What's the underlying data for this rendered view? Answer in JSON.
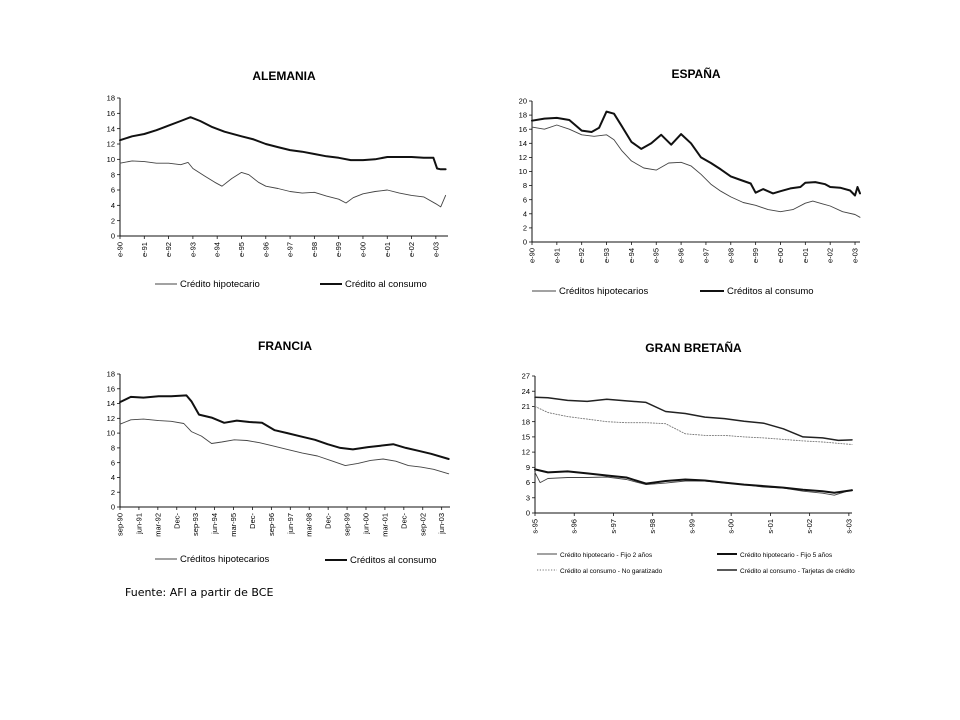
{
  "source_note": "Fuente: AFI a partir de BCE",
  "chart_data": [
    {
      "type": "line",
      "title": "ALEMANIA",
      "ylim": [
        0,
        18
      ],
      "yticks": [
        0,
        2,
        4,
        6,
        8,
        10,
        12,
        14,
        16,
        18
      ],
      "xlim": [
        1990,
        2003.5
      ],
      "xticks": [
        {
          "x": 1990,
          "label": "e-90"
        },
        {
          "x": 1991,
          "label": "e-91"
        },
        {
          "x": 1992,
          "label": "e-92"
        },
        {
          "x": 1993,
          "label": "e-93"
        },
        {
          "x": 1994,
          "label": "e-94"
        },
        {
          "x": 1995,
          "label": "e-95"
        },
        {
          "x": 1996,
          "label": "e-96"
        },
        {
          "x": 1997,
          "label": "e-97"
        },
        {
          "x": 1998,
          "label": "e-98"
        },
        {
          "x": 1999,
          "label": "e-99"
        },
        {
          "x": 2000,
          "label": "e-00"
        },
        {
          "x": 2001,
          "label": "e-01"
        },
        {
          "x": 2002,
          "label": "e-02"
        },
        {
          "x": 2003,
          "label": "e-03"
        }
      ],
      "legend": [
        {
          "label": "Crédito hipotecario",
          "style": "thin"
        },
        {
          "label": "Crédito al consumo",
          "style": "thick"
        }
      ],
      "series": [
        {
          "name": "Crédito hipotecario",
          "style": "thin",
          "x": [
            1990,
            1990.5,
            1991,
            1991.5,
            1992,
            1992.5,
            1992.8,
            1993,
            1993.5,
            1993.9,
            1994.2,
            1994.6,
            1995,
            1995.3,
            1995.7,
            1996,
            1996.5,
            1997,
            1997.5,
            1998,
            1998.5,
            1999,
            1999.3,
            1999.6,
            2000,
            2000.5,
            2001,
            2001.5,
            2002,
            2002.5,
            2003,
            2003.2,
            2003.4
          ],
          "y": [
            9.5,
            9.8,
            9.7,
            9.5,
            9.5,
            9.3,
            9.6,
            8.8,
            7.8,
            7.0,
            6.5,
            7.5,
            8.3,
            8.0,
            7.0,
            6.5,
            6.2,
            5.8,
            5.6,
            5.7,
            5.2,
            4.8,
            4.3,
            5.0,
            5.5,
            5.8,
            6.0,
            5.6,
            5.3,
            5.1,
            4.2,
            3.8,
            5.3
          ]
        },
        {
          "name": "Crédito al consumo",
          "style": "thick",
          "x": [
            1990,
            1990.5,
            1991,
            1991.5,
            1992,
            1992.5,
            1992.9,
            1993.3,
            1993.8,
            1994.3,
            1995,
            1995.5,
            1996,
            1996.5,
            1997,
            1997.5,
            1998,
            1998.5,
            1999,
            1999.5,
            2000,
            2000.5,
            2001,
            2001.5,
            2002,
            2002.5,
            2002.9,
            2003.05,
            2003.2,
            2003.4
          ],
          "y": [
            12.5,
            13.0,
            13.3,
            13.8,
            14.4,
            15.0,
            15.5,
            15.0,
            14.2,
            13.6,
            13.0,
            12.6,
            12.0,
            11.6,
            11.2,
            11.0,
            10.7,
            10.4,
            10.2,
            9.9,
            9.9,
            10.0,
            10.3,
            10.3,
            10.3,
            10.2,
            10.2,
            8.8,
            8.7,
            8.7
          ]
        }
      ]
    },
    {
      "type": "line",
      "title": "ESPAÑA",
      "ylim": [
        0,
        20
      ],
      "yticks": [
        0,
        2,
        4,
        6,
        8,
        10,
        12,
        14,
        16,
        18,
        20
      ],
      "xlim": [
        1990,
        2003.2
      ],
      "xticks": [
        {
          "x": 1990,
          "label": "e-90"
        },
        {
          "x": 1991,
          "label": "e-91"
        },
        {
          "x": 1992,
          "label": "e-92"
        },
        {
          "x": 1993,
          "label": "e-93"
        },
        {
          "x": 1994,
          "label": "e-94"
        },
        {
          "x": 1995,
          "label": "e-95"
        },
        {
          "x": 1996,
          "label": "e-96"
        },
        {
          "x": 1997,
          "label": "e-97"
        },
        {
          "x": 1998,
          "label": "e-98"
        },
        {
          "x": 1999,
          "label": "e-99"
        },
        {
          "x": 2000,
          "label": "e-00"
        },
        {
          "x": 2001,
          "label": "e-01"
        },
        {
          "x": 2002,
          "label": "e-02"
        },
        {
          "x": 2003,
          "label": "e-03"
        }
      ],
      "legend": [
        {
          "label": "Créditos hipotecarios",
          "style": "thin"
        },
        {
          "label": "Créditos al consumo",
          "style": "thick"
        }
      ],
      "series": [
        {
          "name": "Créditos hipotecarios",
          "style": "thin",
          "x": [
            1990,
            1990.5,
            1991,
            1991.5,
            1992,
            1992.5,
            1993,
            1993.3,
            1993.6,
            1994,
            1994.5,
            1995,
            1995.5,
            1996,
            1996.4,
            1996.8,
            1997.2,
            1997.6,
            1998,
            1998.5,
            1999,
            1999.5,
            2000,
            2000.5,
            2001,
            2001.3,
            2001.7,
            2002,
            2002.5,
            2003,
            2003.2
          ],
          "y": [
            16.3,
            16.0,
            16.6,
            16.0,
            15.2,
            15.0,
            15.2,
            14.5,
            13.0,
            11.5,
            10.5,
            10.2,
            11.2,
            11.3,
            10.8,
            9.6,
            8.2,
            7.2,
            6.4,
            5.6,
            5.2,
            4.6,
            4.3,
            4.6,
            5.5,
            5.8,
            5.4,
            5.1,
            4.3,
            3.9,
            3.5
          ]
        },
        {
          "name": "Créditos al consumo",
          "style": "thick",
          "x": [
            1990,
            1990.5,
            1991,
            1991.5,
            1992,
            1992.4,
            1992.7,
            1993,
            1993.3,
            1993.6,
            1994,
            1994.4,
            1994.8,
            1995.2,
            1995.6,
            1996,
            1996.4,
            1996.8,
            1997.2,
            1997.6,
            1998,
            1998.4,
            1998.8,
            1999,
            1999.3,
            1999.7,
            2000,
            2000.4,
            2000.8,
            2001,
            2001.4,
            2001.8,
            2002,
            2002.4,
            2002.8,
            2003,
            2003.1,
            2003.2
          ],
          "y": [
            17.2,
            17.5,
            17.6,
            17.3,
            15.8,
            15.6,
            16.2,
            18.5,
            18.2,
            16.5,
            14.2,
            13.2,
            14.0,
            15.2,
            13.8,
            15.3,
            14.0,
            12.0,
            11.2,
            10.3,
            9.3,
            8.8,
            8.3,
            7.0,
            7.5,
            6.9,
            7.2,
            7.6,
            7.8,
            8.4,
            8.5,
            8.2,
            7.8,
            7.7,
            7.3,
            6.6,
            7.8,
            6.9
          ]
        }
      ]
    },
    {
      "type": "line",
      "title": "FRANCIA",
      "ylim": [
        0,
        18
      ],
      "yticks": [
        0,
        2,
        4,
        6,
        8,
        10,
        12,
        14,
        16,
        18
      ],
      "xlim": [
        1990.67,
        2003.75
      ],
      "xticks": [
        {
          "x": 1990.67,
          "label": "sep-90"
        },
        {
          "x": 1991.42,
          "label": "jun-91"
        },
        {
          "x": 1992.17,
          "label": "mar-92"
        },
        {
          "x": 1992.92,
          "label": "Dec-"
        },
        {
          "x": 1993.67,
          "label": "sep-93"
        },
        {
          "x": 1994.42,
          "label": "jun-94"
        },
        {
          "x": 1995.17,
          "label": "mar-95"
        },
        {
          "x": 1995.92,
          "label": "Dec-"
        },
        {
          "x": 1996.67,
          "label": "sep-96"
        },
        {
          "x": 1997.42,
          "label": "jun-97"
        },
        {
          "x": 1998.17,
          "label": "mar-98"
        },
        {
          "x": 1998.92,
          "label": "Dec-"
        },
        {
          "x": 1999.67,
          "label": "sep-99"
        },
        {
          "x": 2000.42,
          "label": "jun-00"
        },
        {
          "x": 2001.17,
          "label": "mar-01"
        },
        {
          "x": 2001.92,
          "label": "Dec-"
        },
        {
          "x": 2002.67,
          "label": "sep-02"
        },
        {
          "x": 2003.42,
          "label": "jun-03"
        }
      ],
      "legend": [
        {
          "label": "Créditos hipotecarios",
          "style": "thin"
        },
        {
          "label": "Créditos al consumo",
          "style": "thick"
        }
      ],
      "series": [
        {
          "name": "Créditos hipotecarios",
          "style": "thin",
          "x": [
            1990.67,
            1991.1,
            1991.6,
            1992.2,
            1992.7,
            1993.2,
            1993.5,
            1993.9,
            1994.3,
            1994.7,
            1995.2,
            1995.7,
            1996.2,
            1996.7,
            1997.3,
            1997.9,
            1998.5,
            1999.1,
            1999.6,
            2000.1,
            2000.6,
            2001.1,
            2001.6,
            2002.1,
            2002.6,
            2003.1,
            2003.7
          ],
          "y": [
            11.2,
            11.8,
            11.9,
            11.7,
            11.6,
            11.3,
            10.2,
            9.6,
            8.6,
            8.8,
            9.1,
            9.0,
            8.7,
            8.3,
            7.8,
            7.3,
            6.9,
            6.2,
            5.6,
            5.9,
            6.3,
            6.5,
            6.2,
            5.6,
            5.4,
            5.1,
            4.5
          ]
        },
        {
          "name": "Créditos al consumo",
          "style": "thick",
          "x": [
            1990.67,
            1991.1,
            1991.6,
            1992.2,
            1992.7,
            1993.3,
            1993.5,
            1993.8,
            1994.3,
            1994.8,
            1995.3,
            1995.8,
            1996.3,
            1996.8,
            1997.3,
            1997.9,
            1998.4,
            1998.9,
            1999.4,
            1999.9,
            2000.5,
            2001.0,
            2001.5,
            2002.0,
            2002.5,
            2003.0,
            2003.7
          ],
          "y": [
            14.2,
            14.9,
            14.8,
            15.0,
            15.0,
            15.1,
            14.3,
            12.5,
            12.1,
            11.4,
            11.7,
            11.5,
            11.4,
            10.4,
            10.0,
            9.5,
            9.1,
            8.5,
            8.0,
            7.8,
            8.1,
            8.3,
            8.5,
            8.0,
            7.6,
            7.2,
            6.5
          ]
        }
      ]
    },
    {
      "type": "line",
      "title": "GRAN BRETAÑA",
      "ylim": [
        0,
        27
      ],
      "yticks": [
        0,
        3,
        6,
        9,
        12,
        15,
        18,
        21,
        24,
        27
      ],
      "xlim": [
        1995.67,
        2003.75
      ],
      "xticks": [
        {
          "x": 1995.67,
          "label": "s-95"
        },
        {
          "x": 1996.67,
          "label": "s-96"
        },
        {
          "x": 1997.67,
          "label": "s-97"
        },
        {
          "x": 1998.67,
          "label": "s-98"
        },
        {
          "x": 1999.67,
          "label": "s-99"
        },
        {
          "x": 2000.67,
          "label": "s-00"
        },
        {
          "x": 2001.67,
          "label": "s-01"
        },
        {
          "x": 2002.67,
          "label": "s-02"
        },
        {
          "x": 2003.67,
          "label": "s-03"
        }
      ],
      "legend": [
        {
          "label": "Crédito hipotecario - Fijo 2 años",
          "style": "thin"
        },
        {
          "label": "Crédito hipotecario - Fijo 5 años",
          "style": "thick"
        },
        {
          "label": "Crédito al consumo - No garatizado",
          "style": "dotted"
        },
        {
          "label": "Crédito al consumo - Tarjetas de crédito",
          "style": "medium"
        }
      ],
      "series": [
        {
          "name": "Crédito hipotecario - Fijo 2 años",
          "style": "thin",
          "x": [
            1995.67,
            1995.8,
            1996.0,
            1996.5,
            1997.0,
            1997.5,
            1998.0,
            1998.5,
            1999.0,
            1999.5,
            2000.0,
            2000.5,
            2001.0,
            2001.5,
            2002.0,
            2002.5,
            2003.0,
            2003.3,
            2003.75
          ],
          "y": [
            8.0,
            6.0,
            6.8,
            7.0,
            7.0,
            7.1,
            6.6,
            5.6,
            5.9,
            6.3,
            6.3,
            5.9,
            5.6,
            5.1,
            4.9,
            4.3,
            3.9,
            3.5,
            4.6
          ]
        },
        {
          "name": "Crédito hipotecario - Fijo 5 años",
          "style": "thick",
          "x": [
            1995.67,
            1996.0,
            1996.5,
            1997.0,
            1997.5,
            1998.0,
            1998.5,
            1999.0,
            1999.5,
            2000.0,
            2000.5,
            2001.0,
            2001.5,
            2002.0,
            2002.5,
            2003.0,
            2003.3,
            2003.75
          ],
          "y": [
            8.6,
            8.0,
            8.2,
            7.8,
            7.4,
            7.0,
            5.8,
            6.3,
            6.6,
            6.4,
            6.0,
            5.6,
            5.3,
            5.0,
            4.6,
            4.3,
            4.0,
            4.5
          ]
        },
        {
          "name": "Crédito al consumo - No garatizado",
          "style": "dotted",
          "x": [
            1995.67,
            1996.0,
            1996.5,
            1997.0,
            1997.5,
            1998.0,
            1998.5,
            1999.0,
            1999.5,
            2000.0,
            2000.5,
            2001.0,
            2001.5,
            2002.0,
            2002.5,
            2003.0,
            2003.75
          ],
          "y": [
            21.0,
            19.8,
            19.0,
            18.5,
            18.0,
            17.8,
            17.8,
            17.6,
            15.6,
            15.3,
            15.3,
            15.0,
            14.8,
            14.5,
            14.2,
            14.0,
            13.5
          ]
        },
        {
          "name": "Crédito al consumo - Tarjetas de crédito",
          "style": "medium",
          "x": [
            1995.67,
            1996.0,
            1996.5,
            1997.0,
            1997.5,
            1998.0,
            1998.5,
            1999.0,
            1999.5,
            2000.0,
            2000.5,
            2001.0,
            2001.5,
            2002.0,
            2002.5,
            2003.0,
            2003.4,
            2003.75
          ],
          "y": [
            22.8,
            22.7,
            22.2,
            22.0,
            22.4,
            22.1,
            21.8,
            20.0,
            19.6,
            18.9,
            18.6,
            18.1,
            17.7,
            16.6,
            15.0,
            14.8,
            14.3,
            14.4
          ]
        }
      ]
    }
  ]
}
